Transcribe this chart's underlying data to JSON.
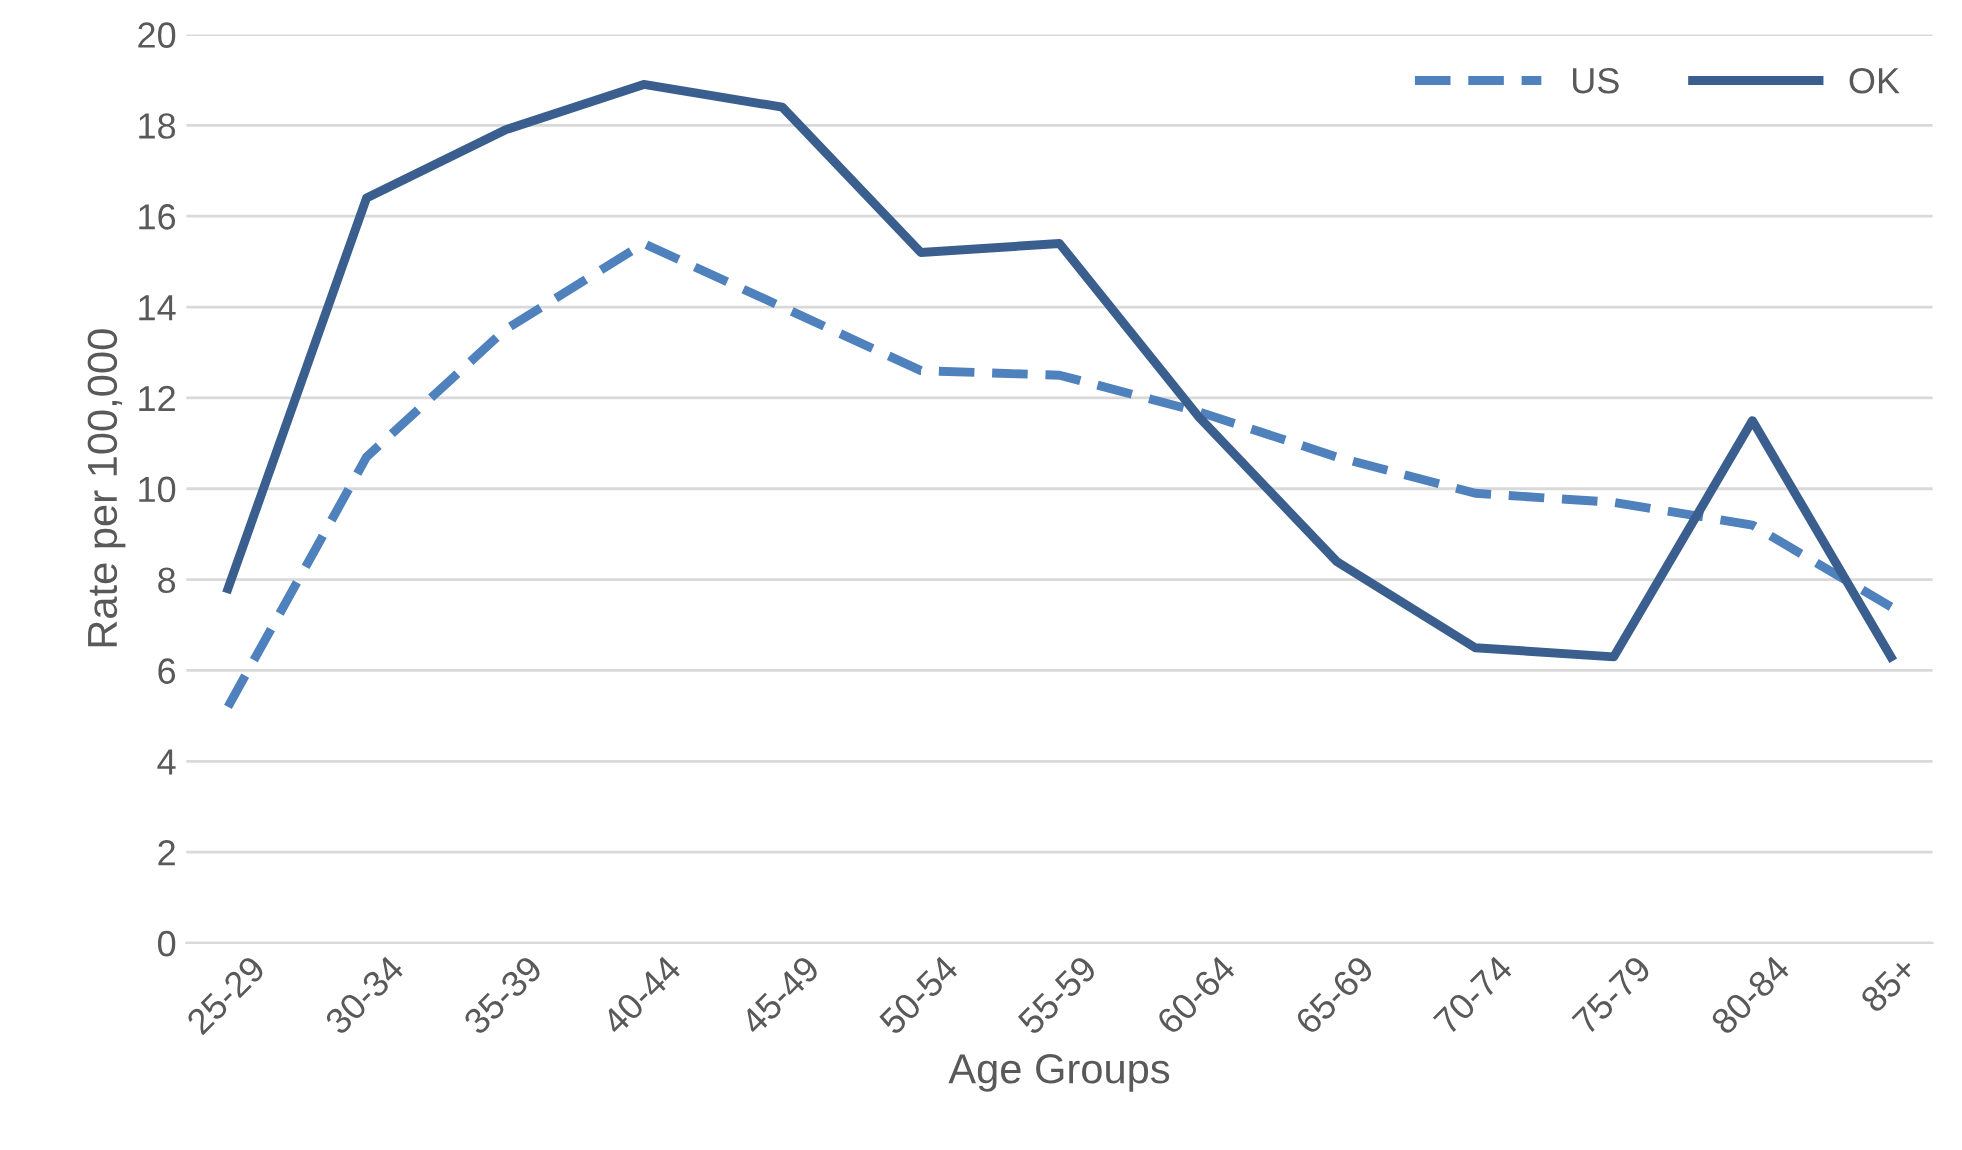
{
  "chart_data": {
    "type": "line",
    "xlabel": "Age Groups",
    "ylabel": "Rate per 100,000",
    "categories": [
      "25-29",
      "30-34",
      "35-39",
      "40-44",
      "45-49",
      "50-54",
      "55-59",
      "60-64",
      "65-69",
      "70-74",
      "75-79",
      "80-84",
      "85+"
    ],
    "series": [
      {
        "name": "US",
        "color": "#4f81bd",
        "line_style": "dashed",
        "values": [
          5.2,
          10.7,
          13.5,
          15.4,
          14.0,
          12.6,
          12.5,
          11.7,
          10.7,
          9.9,
          9.7,
          9.2,
          7.4
        ]
      },
      {
        "name": "OK",
        "color": "#3a5f8f",
        "line_style": "solid",
        "values": [
          7.8,
          16.4,
          17.9,
          18.9,
          18.4,
          15.2,
          15.4,
          11.6,
          8.4,
          6.5,
          6.3,
          11.5,
          6.3
        ]
      }
    ],
    "ylim": [
      0,
      20
    ],
    "yticks": [
      0,
      2,
      4,
      6,
      8,
      10,
      12,
      14,
      16,
      18,
      20
    ],
    "grid": "y",
    "legend": "top right",
    "marker": "none"
  }
}
